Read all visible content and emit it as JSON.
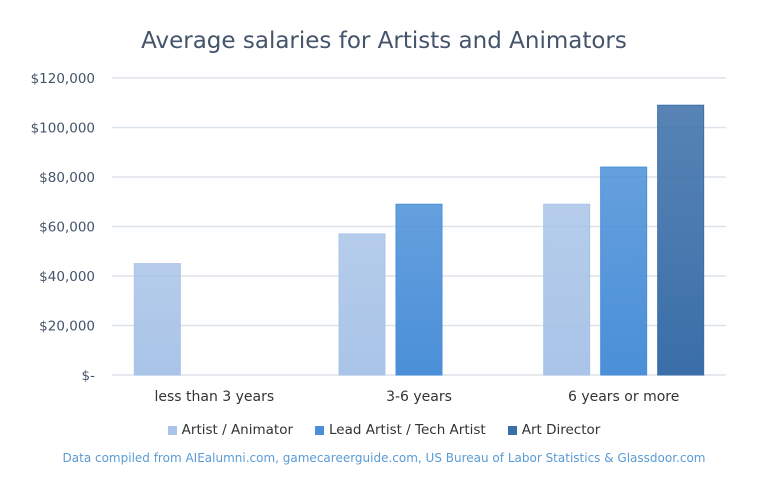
{
  "chart_data": {
    "type": "bar",
    "title": "Average salaries for Artists and Animators",
    "categories": [
      "less than 3 years",
      "3-6 years",
      "6 years or more"
    ],
    "series": [
      {
        "name": "Artist / Animator",
        "values": [
          45000,
          57000,
          69000
        ],
        "color": "#a9c4e8"
      },
      {
        "name": "Lead Artist / Tech Artist",
        "values": [
          null,
          69000,
          84000
        ],
        "color": "#4a8fd8"
      },
      {
        "name": "Art Director",
        "values": [
          null,
          null,
          109000
        ],
        "color": "#3a6ea8"
      }
    ],
    "ylim": [
      0,
      120000
    ],
    "yticks": [
      0,
      20000,
      40000,
      60000,
      80000,
      100000,
      120000
    ],
    "ytick_labels": [
      "$-",
      "$20,000",
      "$40,000",
      "$60,000",
      "$80,000",
      "$100,000",
      "$120,000"
    ],
    "grid": true,
    "legend_position": "bottom",
    "footnote": "Data compiled from AIEalumni.com, gamecareerguide.com, US Bureau of Labor Statistics & Glassdoor.com"
  }
}
